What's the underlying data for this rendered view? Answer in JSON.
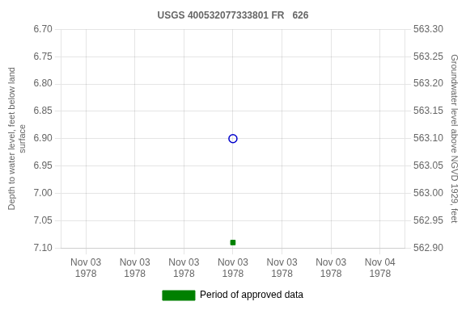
{
  "chart_data": {
    "type": "scatter",
    "title": "USGS 400532077333801 FR   626",
    "ylabel": "Depth to water level, feet below land\nsurface",
    "y2label": "Groundwater level above NGVD 1929, feet",
    "categories": [
      "Nov 03\n1978",
      "Nov 03\n1978",
      "Nov 03\n1978",
      "Nov 03\n1978",
      "Nov 03\n1978",
      "Nov 03\n1978",
      "Nov 04\n1978"
    ],
    "ylim": [
      7.1,
      6.7
    ],
    "yticks": [
      {
        "value": 6.7,
        "label": "6.70"
      },
      6.75,
      {
        "value": 6.8,
        "label": "6.80"
      },
      6.85,
      {
        "value": 6.9,
        "label": "6.90"
      },
      6.95,
      {
        "value": 7.0,
        "label": "7.00"
      },
      7.05,
      {
        "value": 7.1,
        "label": "7.10"
      }
    ],
    "y2lim": [
      562.9,
      563.3
    ],
    "y2ticks": [
      {
        "value": 562.9,
        "label": "562.90"
      },
      562.95,
      {
        "value": 563.0,
        "label": "563.00"
      },
      563.05,
      {
        "value": 563.1,
        "label": "563.10"
      },
      563.15,
      {
        "value": 563.2,
        "label": "563.20"
      },
      563.25,
      {
        "value": 563.3,
        "label": "563.30"
      }
    ],
    "series": [
      {
        "color": "#0000cc",
        "marker": "circle-open",
        "values": [
          null,
          null,
          null,
          6.9,
          null,
          null,
          null
        ]
      },
      {
        "name": "Period of approved data",
        "color": "#008000",
        "marker": "square",
        "values": [
          null,
          null,
          null,
          7.09,
          null,
          null,
          null
        ]
      }
    ],
    "grid": true,
    "legend": "bottom"
  }
}
